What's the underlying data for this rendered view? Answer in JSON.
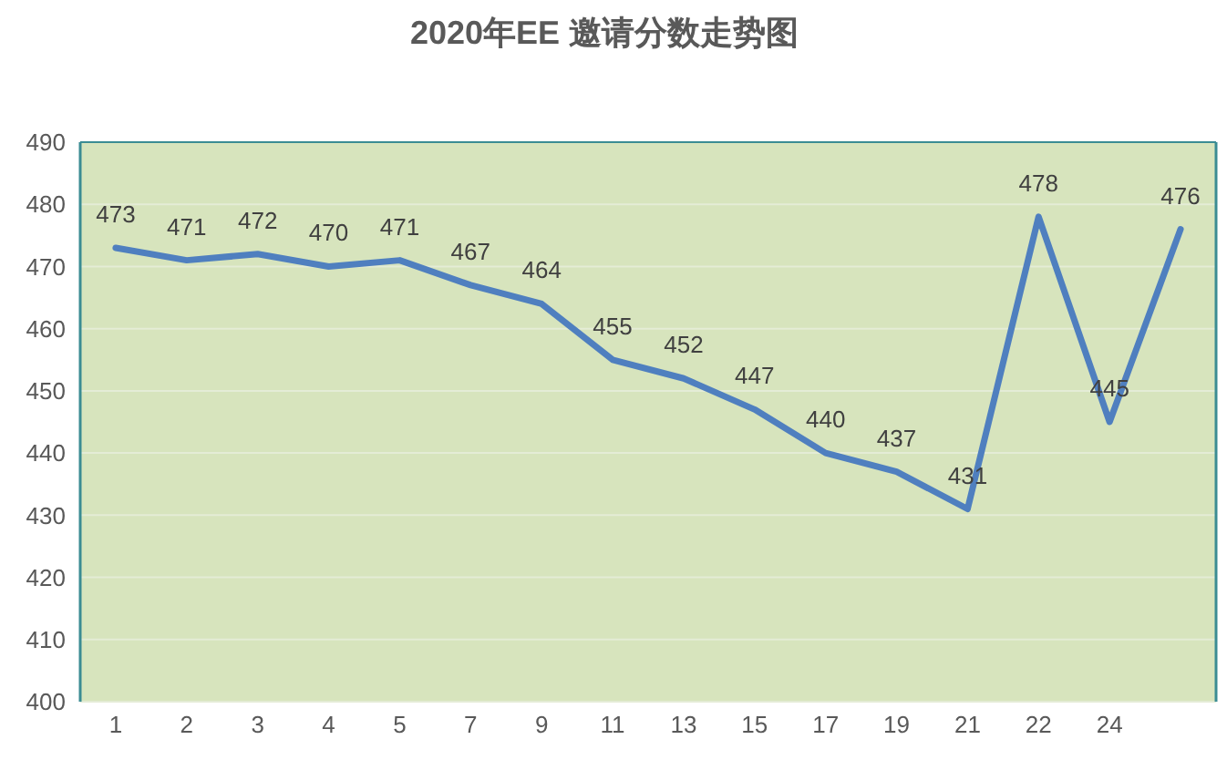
{
  "chart_data": {
    "type": "line",
    "title": "2020年EE 邀请分数走势图",
    "categories": [
      "1",
      "2",
      "3",
      "4",
      "5",
      "7",
      "9",
      "11",
      "13",
      "15",
      "17",
      "19",
      "21",
      "22",
      "24",
      null
    ],
    "series": [
      {
        "color": "#4f7fbf",
        "values": [
          473,
          471,
          472,
          470,
          471,
          467,
          464,
          455,
          452,
          447,
          440,
          437,
          431,
          478,
          445,
          476
        ]
      }
    ],
    "ylim": [
      400,
      490
    ],
    "yticks": [
      400,
      410,
      420,
      430,
      440,
      450,
      460,
      470,
      480,
      490
    ],
    "grid": "y",
    "marker": "none",
    "line_style": "solid",
    "data_labels": true
  }
}
